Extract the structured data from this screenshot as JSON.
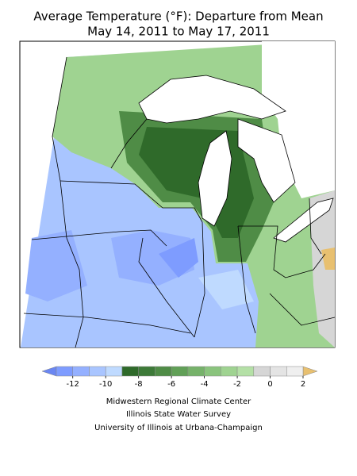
{
  "title": [
    "Average Temperature (°F): Departure from Mean",
    "May 14, 2011 to May 17, 2011"
  ],
  "colorbar": {
    "bounds": [
      -13,
      -12,
      -11,
      -10,
      -9,
      -8,
      -7,
      -6,
      -5,
      -4,
      -3,
      -2,
      -1,
      0,
      1,
      2
    ],
    "colors": [
      "#7e9cff",
      "#94b0ff",
      "#a9c5ff",
      "#bfdaff",
      "#2f6a2a",
      "#3d7a38",
      "#4f8c46",
      "#61a057",
      "#76b26a",
      "#8ac47d",
      "#9fd391",
      "#b4e0a6",
      "#d6d6d6",
      "#e4e4e4",
      "#efefef"
    ],
    "under_color": "#6a86f2",
    "over_color": "#e8c070",
    "ticks": [
      -12,
      -10,
      -8,
      -6,
      -4,
      -2,
      0,
      2
    ]
  },
  "credits": [
    "Midwestern Regional Climate Center",
    "Illinois State Water Survey",
    "University of Illinois at Urbana-Champaign"
  ]
}
